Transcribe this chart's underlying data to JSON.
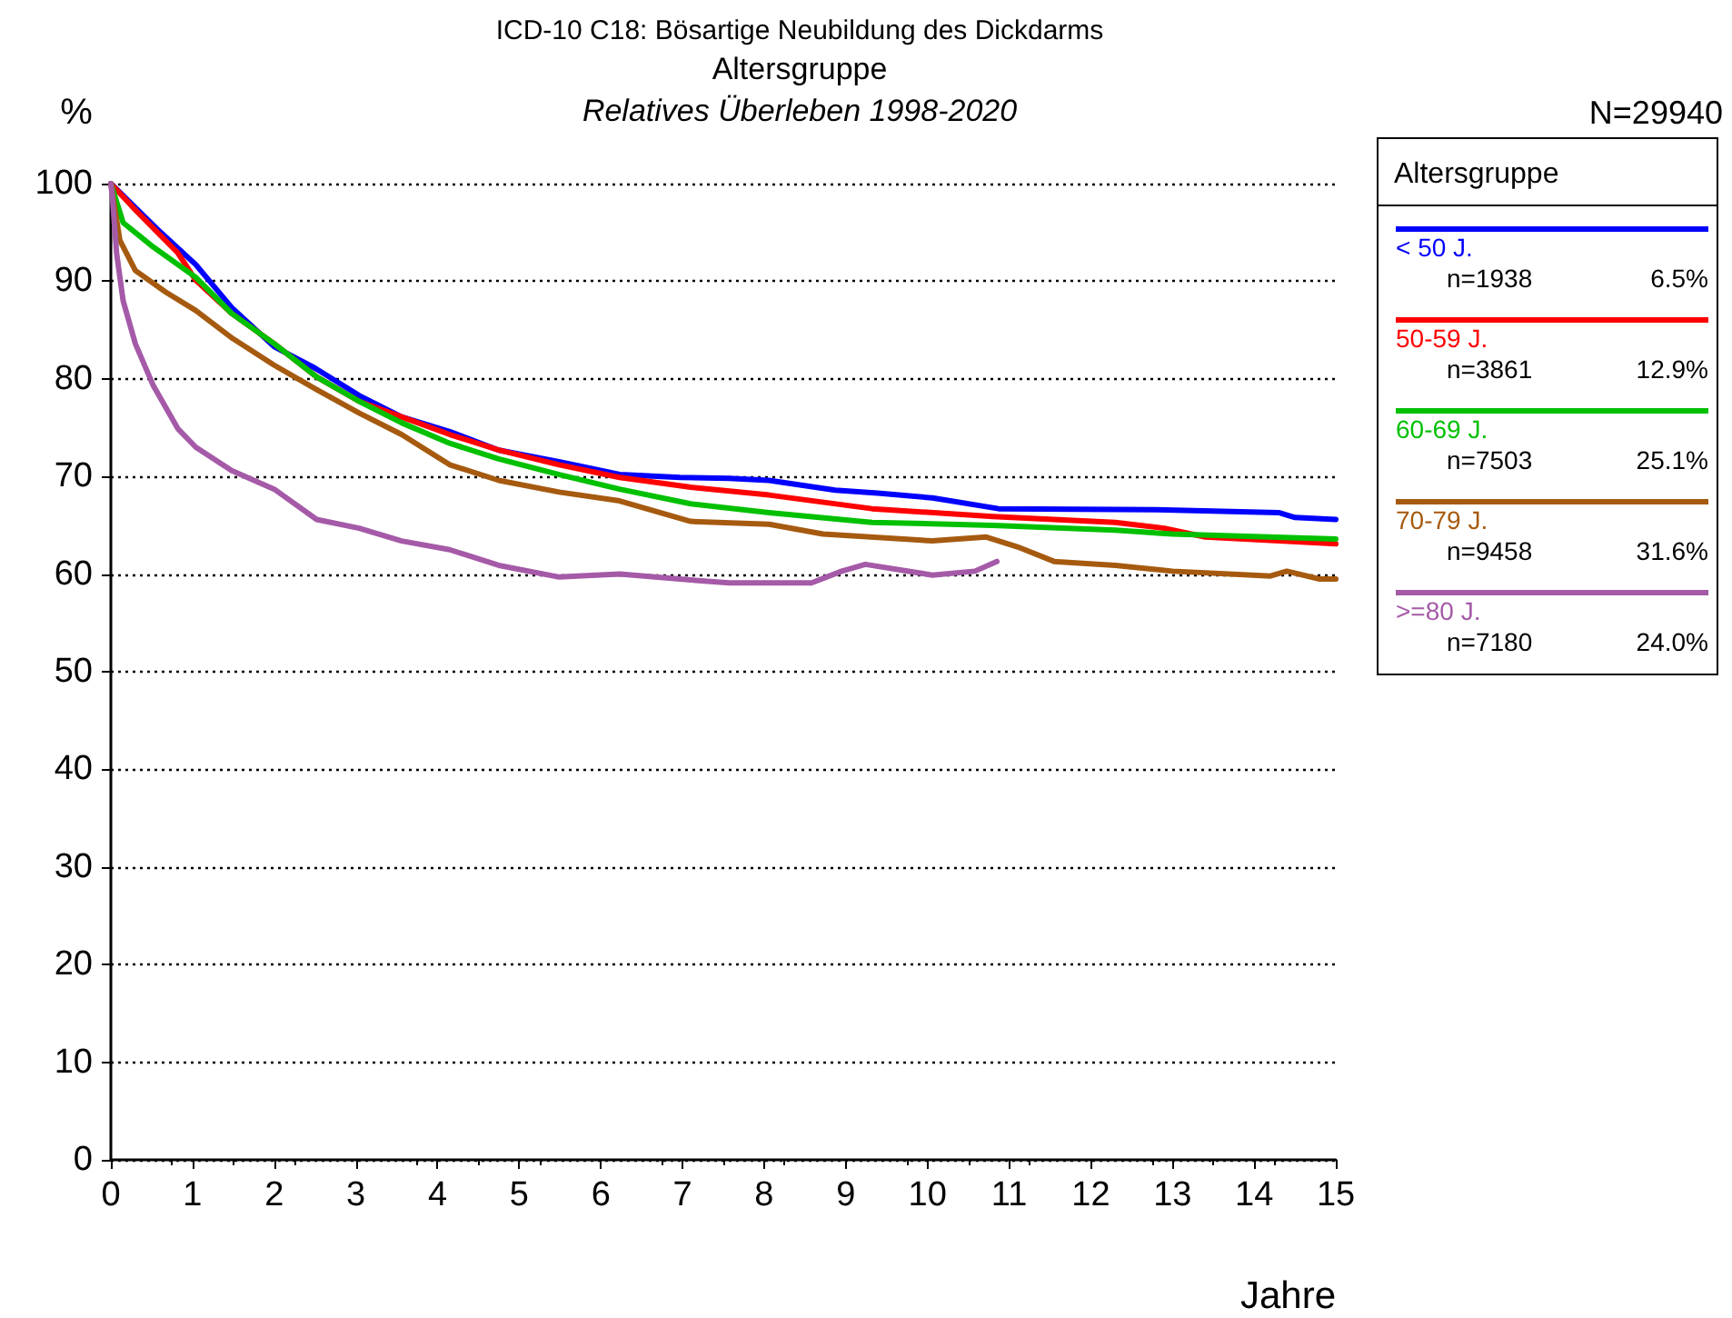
{
  "chart_data": {
    "type": "line",
    "title": "ICD-10 C18: Bösartige Neubildung des Dickdarms",
    "subtitle": "Altersgruppe",
    "xlabel": "Jahre",
    "ylabel": "%",
    "legend_title": "Altersgruppe",
    "annotations": [
      "Relatives Überleben 1998-2020",
      "N=29940",
      "n=1938",
      "6.5%",
      "n=3861",
      "12.9%",
      "n=7503",
      "25.1%",
      "n=9458",
      "31.6%",
      "n=7180",
      "24.0%"
    ],
    "xlim": [
      0,
      15
    ],
    "xticks": [
      0,
      1,
      2,
      3,
      4,
      5,
      6,
      7,
      8,
      9,
      10,
      11,
      12,
      13,
      14,
      15
    ],
    "ylim": [
      0,
      100
    ],
    "yticks": [
      0,
      10,
      20,
      30,
      40,
      50,
      60,
      70,
      80,
      90,
      100
    ],
    "grid": "y",
    "legend": "right",
    "marker": "none",
    "line_style": "solid",
    "series": [
      {
        "name": "< 50 J.",
        "color": "#0000ff",
        "x": [
          0,
          0.56,
          1.04,
          1.48,
          2.0,
          2.5,
          3.04,
          3.56,
          4.15,
          4.75,
          5.5,
          6.23,
          6.97,
          7.57,
          8.06,
          8.87,
          9.39,
          10.06,
          10.87,
          12.8,
          14.3,
          14.5,
          15.0
        ],
        "values": [
          100,
          95.4,
          91.7,
          87.3,
          83.3,
          81.1,
          78.3,
          76.1,
          74.6,
          72.7,
          71.5,
          70.2,
          69.9,
          69.8,
          69.6,
          68.6,
          68.3,
          67.8,
          66.7,
          66.6,
          66.3,
          65.8,
          65.6
        ]
      },
      {
        "name": "50-59 J.",
        "color": "#ff0000",
        "x": [
          0,
          0.3,
          0.82,
          1.04,
          1.48,
          2.0,
          2.52,
          3.04,
          3.56,
          4.15,
          4.75,
          5.49,
          6.23,
          7.1,
          8.06,
          9.32,
          10.8,
          12.3,
          12.9,
          13.4,
          15.0
        ],
        "values": [
          100,
          97.3,
          92.9,
          90.1,
          86.7,
          83.6,
          80.2,
          77.7,
          76.1,
          74.3,
          72.7,
          71.2,
          69.9,
          68.9,
          68.1,
          66.7,
          65.9,
          65.3,
          64.7,
          63.8,
          63.1
        ]
      },
      {
        "name": "60-69 J.",
        "color": "#00c000",
        "x": [
          0,
          0.15,
          0.52,
          1.04,
          1.48,
          2.0,
          2.52,
          3.04,
          3.56,
          4.15,
          4.75,
          5.49,
          6.23,
          7.1,
          8.06,
          9.32,
          10.8,
          12.3,
          13.0,
          15.0
        ],
        "values": [
          100,
          96.0,
          93.5,
          90.4,
          86.7,
          83.6,
          80.2,
          77.7,
          75.5,
          73.4,
          71.8,
          70.2,
          68.7,
          67.2,
          66.3,
          65.3,
          65.0,
          64.5,
          64.1,
          63.6
        ]
      },
      {
        "name": "70-79 J.",
        "color": "#a65a0f",
        "x": [
          0,
          0.11,
          0.3,
          0.67,
          1.04,
          1.48,
          2.0,
          2.52,
          3.04,
          3.56,
          4.15,
          4.75,
          5.49,
          6.23,
          7.1,
          8.06,
          8.72,
          10.06,
          10.72,
          11.1,
          11.55,
          12.3,
          13.0,
          14.2,
          14.4,
          14.8,
          15.0
        ],
        "values": [
          100,
          94.2,
          91.1,
          88.9,
          87.0,
          84.2,
          81.4,
          78.9,
          76.5,
          74.3,
          71.2,
          69.6,
          68.4,
          67.5,
          65.4,
          65.1,
          64.1,
          63.4,
          63.8,
          62.8,
          61.3,
          60.9,
          60.3,
          59.8,
          60.3,
          59.5,
          59.5
        ]
      },
      {
        "name": ">=80 J.",
        "color": "#a55aa8",
        "x": [
          0,
          0.02,
          0.07,
          0.15,
          0.3,
          0.52,
          0.82,
          1.04,
          1.48,
          2.0,
          2.52,
          3.04,
          3.56,
          4.15,
          4.75,
          5.49,
          6.23,
          7.1,
          7.57,
          8.58,
          8.95,
          9.24,
          10.06,
          10.58,
          10.85
        ],
        "values": [
          100,
          98.5,
          92.9,
          88.0,
          83.6,
          79.3,
          74.9,
          73.0,
          70.6,
          68.7,
          65.6,
          64.7,
          63.4,
          62.5,
          60.9,
          59.7,
          60.0,
          59.4,
          59.1,
          59.1,
          60.3,
          61.0,
          59.9,
          60.3,
          61.3
        ]
      }
    ]
  }
}
